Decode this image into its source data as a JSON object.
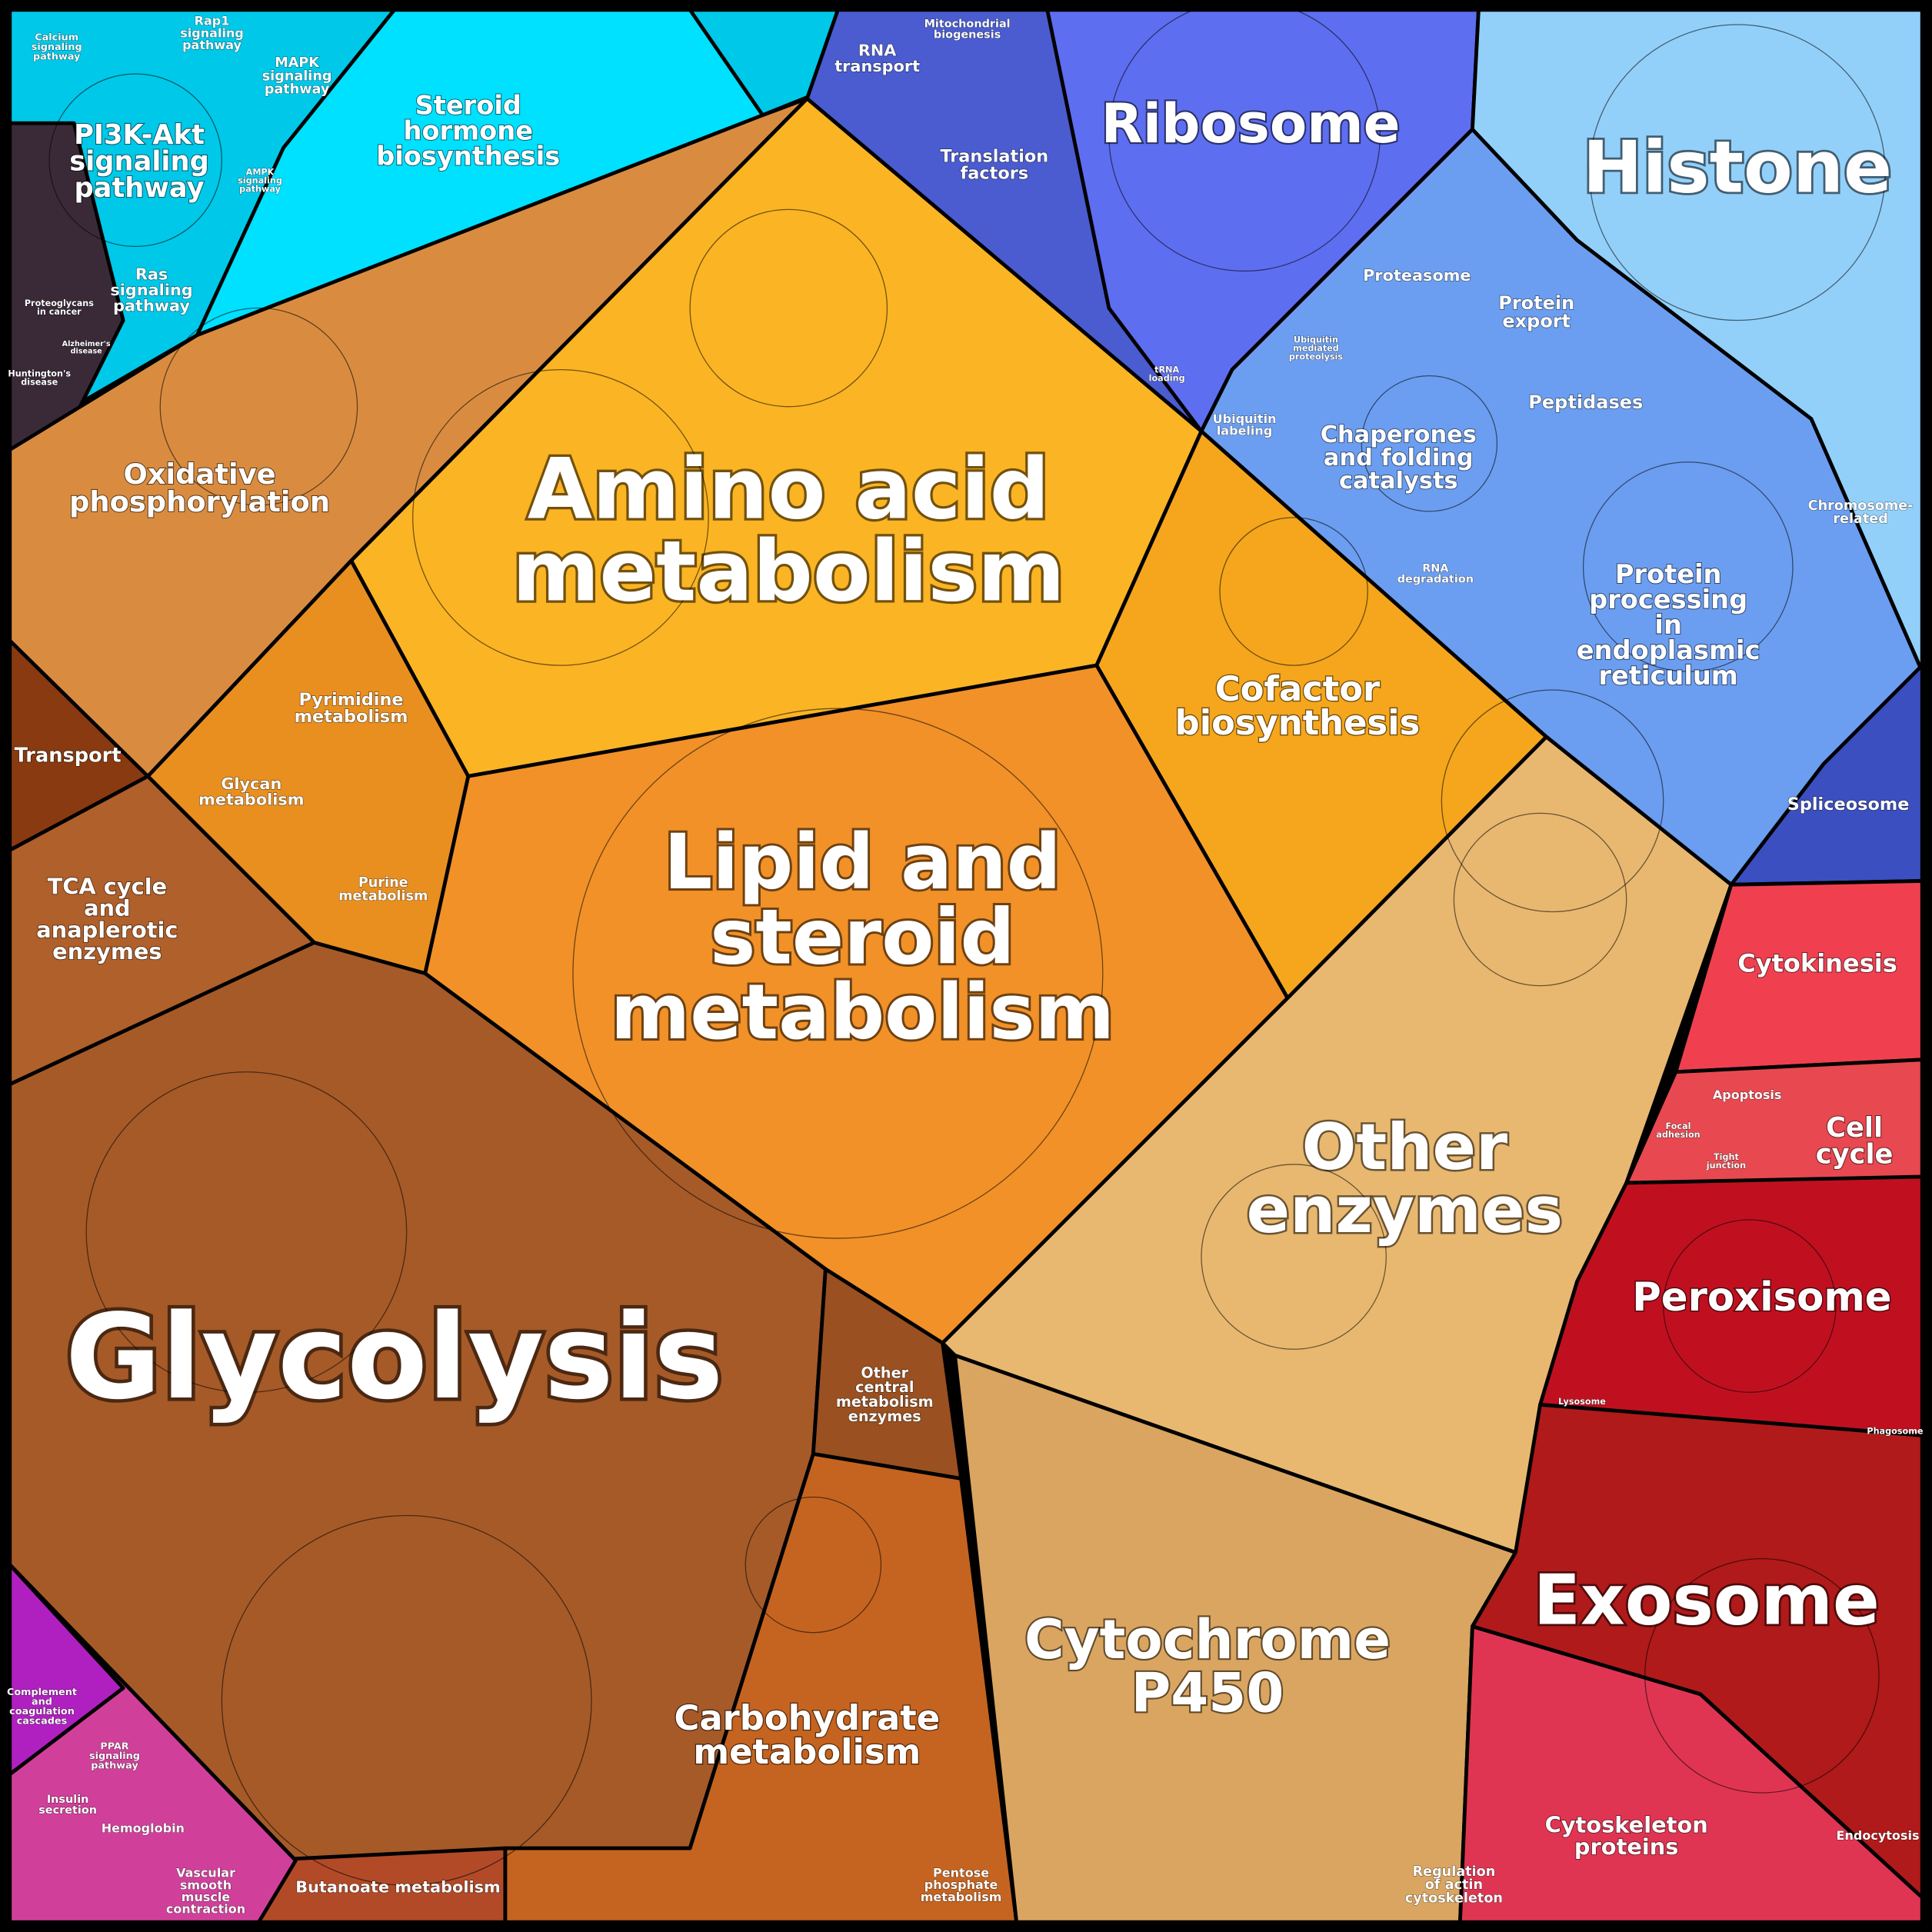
{
  "labels": [
    {
      "lines": [
        "Amino acid",
        "metabolism"
      ]
    },
    {
      "lines": [
        "Lipid and",
        "steroid",
        "metabolism"
      ]
    },
    {
      "lines": [
        "Glycolysis"
      ]
    },
    {
      "lines": [
        "Other",
        "enzymes"
      ]
    },
    {
      "lines": [
        "Cytochrome",
        "P450"
      ]
    },
    {
      "lines": [
        "Exosome"
      ]
    },
    {
      "lines": [
        "Histone"
      ]
    },
    {
      "lines": [
        "Ribosome"
      ]
    },
    {
      "lines": [
        "Peroxisome"
      ]
    },
    {
      "lines": [
        "Carbohydrate",
        "metabolism"
      ]
    },
    {
      "lines": [
        "Oxidative",
        "phosphorylation"
      ]
    },
    {
      "lines": [
        "Cofactor",
        "biosynthesis"
      ]
    },
    {
      "lines": [
        "Steroid",
        "hormone",
        "biosynthesis"
      ]
    },
    {
      "lines": [
        "PI3K-Akt",
        "signaling",
        "pathway"
      ]
    },
    {
      "lines": [
        "Protein",
        "processing",
        "in",
        "endoplasmic",
        "reticulum"
      ]
    },
    {
      "lines": [
        "Chaperones",
        "and folding",
        "catalysts"
      ]
    },
    {
      "lines": [
        "Cytokinesis"
      ]
    },
    {
      "lines": [
        "Cell",
        "cycle"
      ]
    },
    {
      "lines": [
        "Cytoskeleton",
        "proteins"
      ]
    },
    {
      "lines": [
        "TCA cycle",
        "and",
        "anaplerotic",
        "enzymes"
      ]
    },
    {
      "lines": [
        "Transport"
      ]
    },
    {
      "lines": [
        "Pyrimidine",
        "metabolism"
      ]
    },
    {
      "lines": [
        "Glycan",
        "metabolism"
      ]
    },
    {
      "lines": [
        "Purine",
        "metabolism"
      ]
    },
    {
      "lines": [
        "Other",
        "central",
        "metabolism",
        "enzymes"
      ]
    },
    {
      "lines": [
        "Butanoate metabolism"
      ]
    },
    {
      "lines": [
        "Pentose",
        "phosphate",
        "metabolism"
      ]
    },
    {
      "lines": [
        "Translation",
        "factors"
      ]
    },
    {
      "lines": [
        "RNA",
        "transport"
      ]
    },
    {
      "lines": [
        "Mitochondrial",
        "biogenesis"
      ]
    },
    {
      "lines": [
        "Proteasome"
      ]
    },
    {
      "lines": [
        "Protein",
        "export"
      ]
    },
    {
      "lines": [
        "Peptidases"
      ]
    },
    {
      "lines": [
        "Spliceosome"
      ]
    },
    {
      "lines": [
        "Ubiquitin",
        "labeling"
      ]
    },
    {
      "lines": [
        "RNA",
        "degradation"
      ]
    },
    {
      "lines": [
        "Chromosome-",
        "related"
      ]
    },
    {
      "lines": [
        "Ras",
        "signaling",
        "pathway"
      ]
    },
    {
      "lines": [
        "MAPK",
        "signaling",
        "pathway"
      ]
    },
    {
      "lines": [
        "Rap1",
        "signaling",
        "pathway"
      ]
    },
    {
      "lines": [
        "Calcium",
        "signaling",
        "pathway"
      ]
    },
    {
      "lines": [
        "Proteoglycans",
        "in cancer"
      ]
    },
    {
      "lines": [
        "Huntington's",
        "disease"
      ]
    },
    {
      "lines": [
        "Alzheimer's",
        "disease"
      ]
    },
    {
      "lines": [
        "Apoptosis"
      ]
    },
    {
      "lines": [
        "Focal",
        "adhesion"
      ]
    },
    {
      "lines": [
        "Tight",
        "junction"
      ]
    },
    {
      "lines": [
        "Lysosome"
      ]
    },
    {
      "lines": [
        "Phagosome"
      ]
    },
    {
      "lines": [
        "Endocytosis"
      ]
    },
    {
      "lines": [
        "Regulation",
        "of actin",
        "cytoskeleton"
      ]
    },
    {
      "lines": [
        "Complement",
        "and",
        "coagulation",
        "cascades"
      ]
    },
    {
      "lines": [
        "PPAR",
        "signaling",
        "pathway"
      ]
    },
    {
      "lines": [
        "Insulin",
        "secretion"
      ]
    },
    {
      "lines": [
        "Hemoglobin"
      ]
    },
    {
      "lines": [
        "Vascular",
        "smooth",
        "muscle",
        "contraction"
      ]
    },
    {
      "lines": [
        "AMPK",
        "signaling",
        "pathway"
      ]
    },
    {
      "lines": [
        "Ubiquitin",
        "mediated",
        "proteolysis"
      ]
    },
    {
      "lines": [
        "tRNA",
        "loading"
      ]
    }
  ]
}
